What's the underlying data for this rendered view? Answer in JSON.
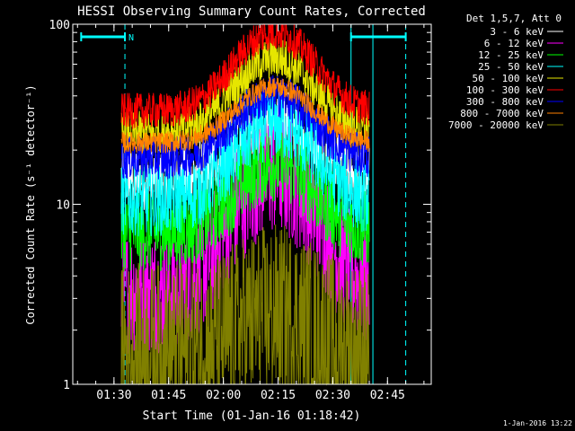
{
  "chart_data": {
    "type": "line",
    "title": "HESSI Observing Summary Count Rates, Corrected",
    "xlabel": "Start Time (01-Jan-16 01:18:42)",
    "ylabel": "Corrected Count Rate (s⁻¹ detector⁻¹)",
    "yscale": "log",
    "ylim": [
      1,
      100
    ],
    "y_ticks": [
      "1",
      "10",
      "100"
    ],
    "x_range": [
      "01:18:42",
      "02:57:00"
    ],
    "x_ticks": [
      "01:30",
      "01:45",
      "02:00",
      "02:15",
      "02:30",
      "02:45"
    ],
    "legend_title": "Det 1,5,7, Att 0",
    "legend_position": "right",
    "data_window": [
      "01:32:00",
      "02:40:00"
    ],
    "series": [
      {
        "name": "3 - 6 keV",
        "color": "#ffffff",
        "base": 14,
        "peak": 30,
        "noise": 0.18
      },
      {
        "name": "6 - 12 keV",
        "color": "#ff00ff",
        "base": 3.3,
        "peak": 15,
        "noise": 0.35
      },
      {
        "name": "12 - 25 keV",
        "color": "#00ff00",
        "base": 7,
        "peak": 17,
        "noise": 0.22
      },
      {
        "name": "25 - 50 keV",
        "color": "#00ffff",
        "base": 10.5,
        "peak": 28,
        "noise": 0.2
      },
      {
        "name": "50 - 100 keV",
        "color": "#e6e600",
        "base": 25,
        "peak": 65,
        "noise": 0.12
      },
      {
        "name": "100 - 300 keV",
        "color": "#ff0000",
        "base": 33,
        "peak": 90,
        "noise": 0.1
      },
      {
        "name": "300 - 800 keV",
        "color": "#0000ff",
        "base": 18,
        "peak": 40,
        "noise": 0.12
      },
      {
        "name": "800 - 7000 keV",
        "color": "#ff8000",
        "base": 22,
        "peak": 45,
        "noise": 0.06
      },
      {
        "name": "7000 - 20000 keV",
        "color": "#808000",
        "base": 1.5,
        "peak": 2.5,
        "noise": 0.5
      }
    ],
    "flare_peak_time": "02:14:00",
    "flags": [
      {
        "label": "N",
        "color": "#00ffff",
        "x_start": "01:21:00",
        "x_end": "01:33:00"
      },
      {
        "label": "",
        "color": "#00ffff",
        "x_start": "02:35:00",
        "x_end": "02:50:00"
      }
    ],
    "markers": {
      "color": "#00ffff",
      "dashed": [
        "01:33:00",
        "02:50:00"
      ],
      "solid": [
        "02:35:00",
        "02:41:00"
      ]
    },
    "footer_date": "1-Jan-2016 13:22"
  }
}
